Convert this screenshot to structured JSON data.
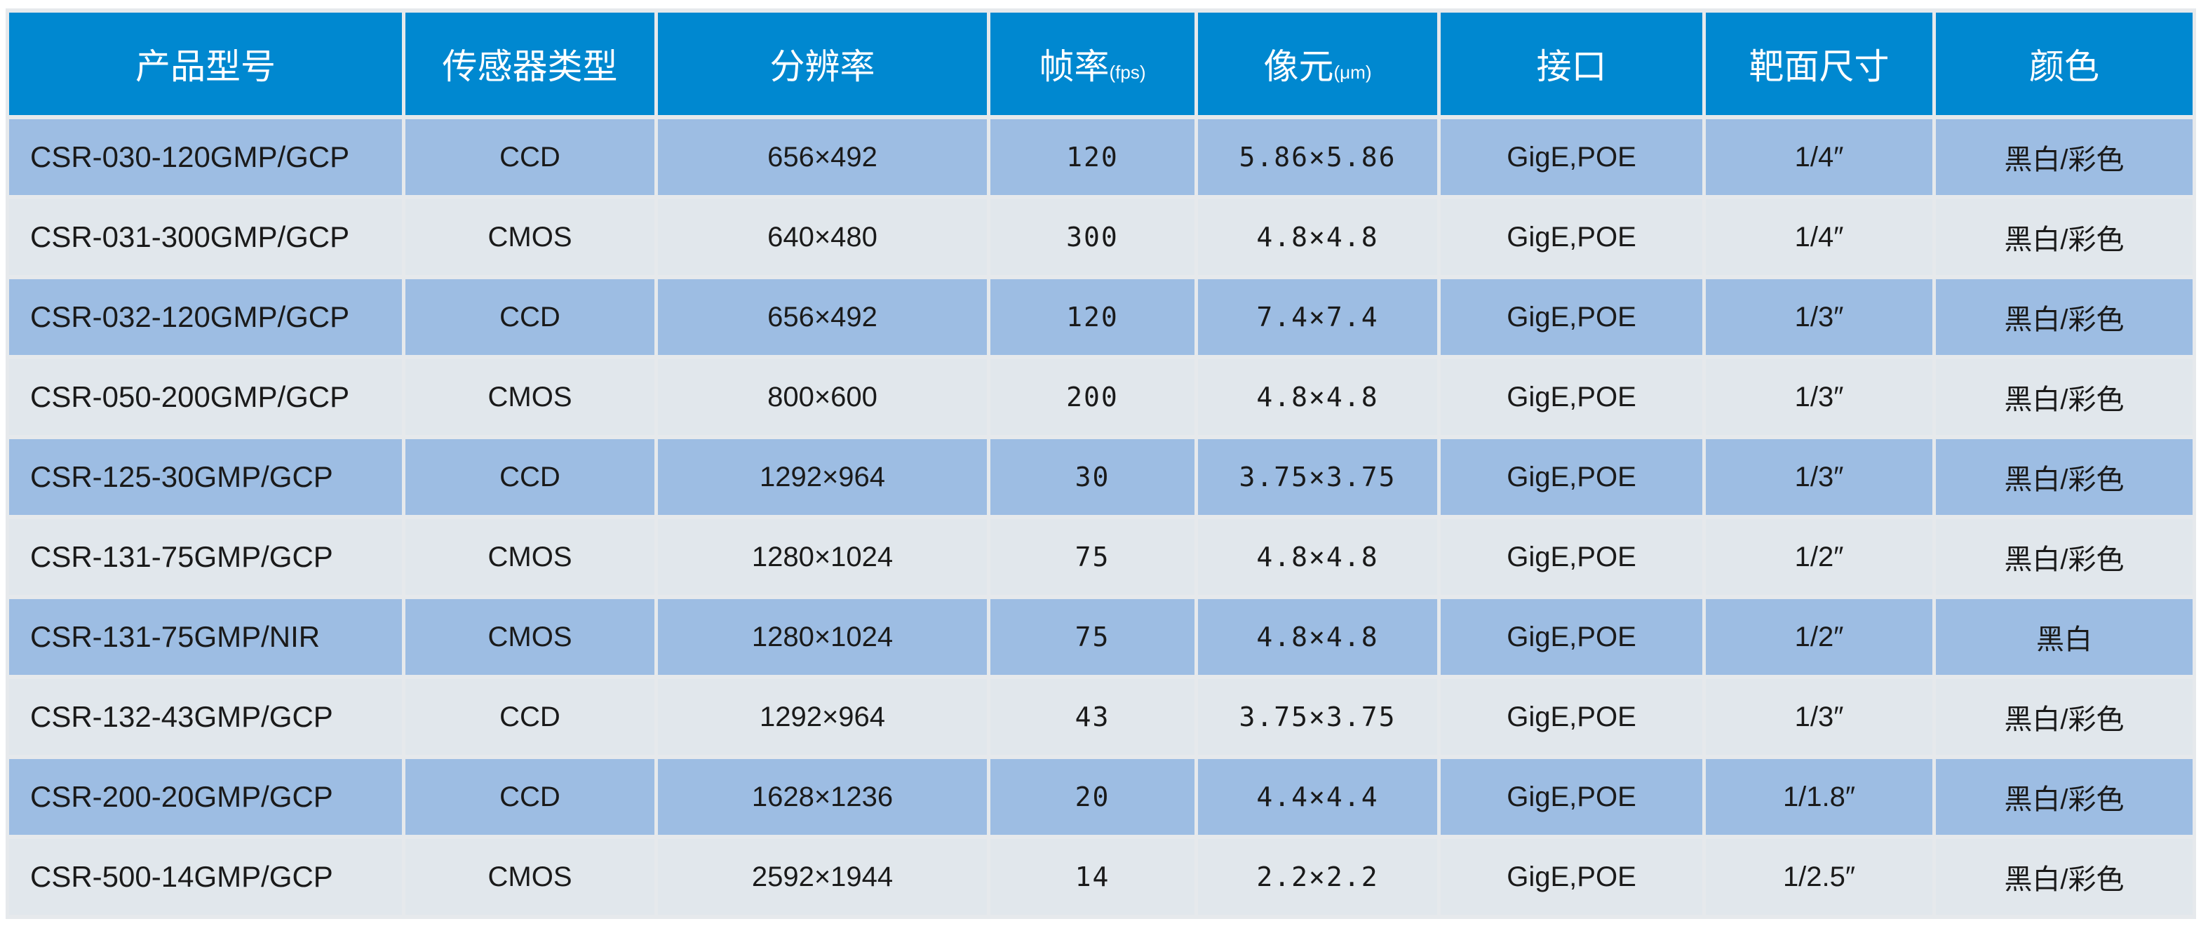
{
  "headers": [
    {
      "label": "产品型号",
      "unit": ""
    },
    {
      "label": "传感器类型",
      "unit": ""
    },
    {
      "label": "分辨率",
      "unit": ""
    },
    {
      "label": "帧率",
      "unit": "(fps)"
    },
    {
      "label": "像元",
      "unit": "(μm)"
    },
    {
      "label": "接口",
      "unit": ""
    },
    {
      "label": "靶面尺寸",
      "unit": ""
    },
    {
      "label": "颜色",
      "unit": ""
    }
  ],
  "rows": [
    [
      "CSR-030-120GMP/GCP",
      "CCD",
      "656×492",
      "120",
      "5.86×5.86",
      "GigE,POE",
      "1/4″",
      "黑白/彩色"
    ],
    [
      "CSR-031-300GMP/GCP",
      "CMOS",
      "640×480",
      "300",
      "4.8×4.8",
      "GigE,POE",
      "1/4″",
      "黑白/彩色"
    ],
    [
      "CSR-032-120GMP/GCP",
      "CCD",
      "656×492",
      "120",
      "7.4×7.4",
      "GigE,POE",
      "1/3″",
      "黑白/彩色"
    ],
    [
      "CSR-050-200GMP/GCP",
      "CMOS",
      "800×600",
      "200",
      "4.8×4.8",
      "GigE,POE",
      "1/3″",
      "黑白/彩色"
    ],
    [
      "CSR-125-30GMP/GCP",
      "CCD",
      "1292×964",
      "30",
      "3.75×3.75",
      "GigE,POE",
      "1/3″",
      "黑白/彩色"
    ],
    [
      "CSR-131-75GMP/GCP",
      "CMOS",
      "1280×1024",
      "75",
      "4.8×4.8",
      "GigE,POE",
      "1/2″",
      "黑白/彩色"
    ],
    [
      "CSR-131-75GMP/NIR",
      "CMOS",
      "1280×1024",
      "75",
      "4.8×4.8",
      "GigE,POE",
      "1/2″",
      "黑白"
    ],
    [
      "CSR-132-43GMP/GCP",
      "CCD",
      "1292×964",
      "43",
      "3.75×3.75",
      "GigE,POE",
      "1/3″",
      "黑白/彩色"
    ],
    [
      "CSR-200-20GMP/GCP",
      "CCD",
      "1628×1236",
      "20",
      "4.4×4.4",
      "GigE,POE",
      "1/1.8″",
      "黑白/彩色"
    ],
    [
      "CSR-500-14GMP/GCP",
      "CMOS",
      "2592×1944",
      "14",
      "2.2×2.2",
      "GigE,POE",
      "1/2.5″",
      "黑白/彩色"
    ]
  ],
  "colors": {
    "header": "#0088d0",
    "row_odd": "#9dbde3",
    "row_even": "#e1e7ec"
  }
}
